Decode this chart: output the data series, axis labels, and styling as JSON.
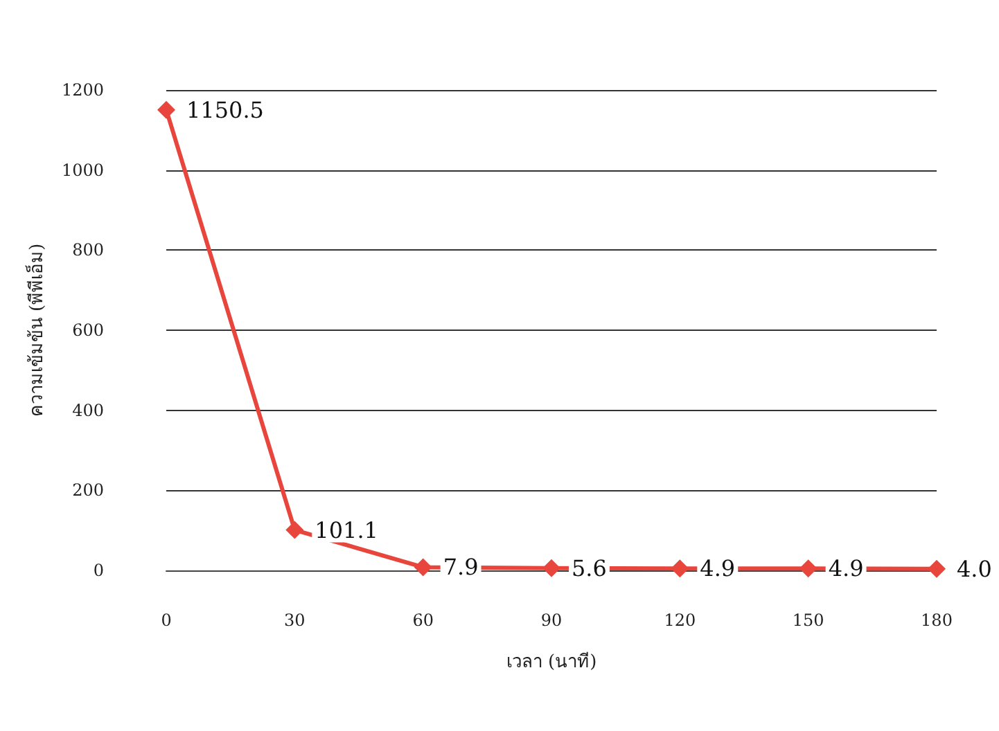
{
  "chart_data": {
    "type": "line",
    "xlabel": "เวลา (นาที)",
    "ylabel": "ความเข้มข้น (พีพีเอ็ม)",
    "x": [
      0,
      30,
      60,
      90,
      120,
      150,
      180
    ],
    "series": [
      {
        "color": "#e8463c",
        "values": [
          1150.5,
          101.1,
          7.9,
          5.6,
          4.9,
          4.9,
          4.0
        ],
        "value_labels": [
          "1150.5",
          "101.1",
          "7.9",
          "5.6",
          "4.9",
          "4.9",
          "4.0"
        ]
      }
    ],
    "xlim": [
      0,
      180
    ],
    "xticks": [
      0,
      30,
      60,
      90,
      120,
      150,
      180
    ],
    "ylim": [
      0,
      1200
    ],
    "yticks": [
      0,
      200,
      400,
      600,
      800,
      1000,
      1200
    ],
    "grid": "y",
    "marker": "diamond",
    "line_style": "solid"
  }
}
